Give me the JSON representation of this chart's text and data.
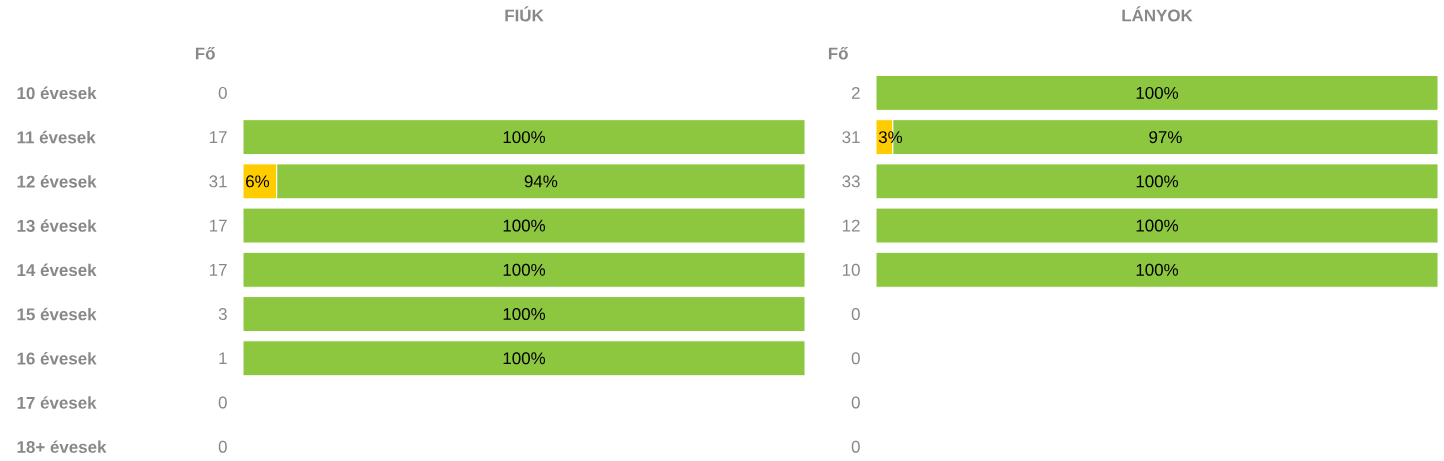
{
  "chart_data": [
    {
      "type": "bar",
      "orientation": "horizontal",
      "stacked": true,
      "title": "FIÚK",
      "y2label": "Fő",
      "tick_labels": "y",
      "xlim": [
        0,
        100
      ],
      "categories": [
        "10 évesek",
        "11 évesek",
        "12 évesek",
        "13 évesek",
        "14  évesek",
        "15 évesek",
        "16 évesek",
        "17 évesek",
        "18+ évesek"
      ],
      "y2_categories": [
        "0",
        "17",
        "31",
        "17",
        "17",
        "3",
        "1",
        "0",
        "0"
      ],
      "series": [
        {
          "color": "#ffcc00",
          "values": [
            null,
            null,
            6,
            null,
            null,
            null,
            null,
            null,
            null
          ],
          "value_labels": [
            null,
            null,
            "6%",
            null,
            null,
            null,
            null,
            null,
            null
          ]
        },
        {
          "color": "#8dc63f",
          "values": [
            null,
            100,
            94,
            100,
            100,
            100,
            100,
            null,
            null
          ],
          "value_labels": [
            null,
            "100%",
            "94%",
            "100%",
            "100%",
            "100%",
            "100%",
            null,
            null
          ]
        }
      ]
    },
    {
      "type": "bar",
      "orientation": "horizontal",
      "stacked": true,
      "title": "LÁNYOK",
      "y2label": "Fő",
      "tick_labels": false,
      "xlim": [
        0,
        100
      ],
      "categories": [
        null,
        null,
        null,
        null,
        null,
        null,
        null,
        null,
        null
      ],
      "y2_categories": [
        "2",
        "31",
        "33",
        "12",
        "10",
        "0",
        "0",
        "0",
        "0"
      ],
      "series": [
        {
          "color": "#ffcc00",
          "values": [
            null,
            3,
            null,
            null,
            null,
            null,
            null,
            null,
            null
          ],
          "value_labels": [
            null,
            "3%",
            null,
            null,
            null,
            null,
            null,
            null,
            null
          ]
        },
        {
          "color": "#8dc63f",
          "values": [
            100,
            97,
            100,
            100,
            100,
            null,
            null,
            null,
            null
          ],
          "value_labels": [
            "100%",
            "97%",
            "100%",
            "100%",
            "100%",
            null,
            null,
            null,
            null
          ]
        }
      ]
    }
  ]
}
